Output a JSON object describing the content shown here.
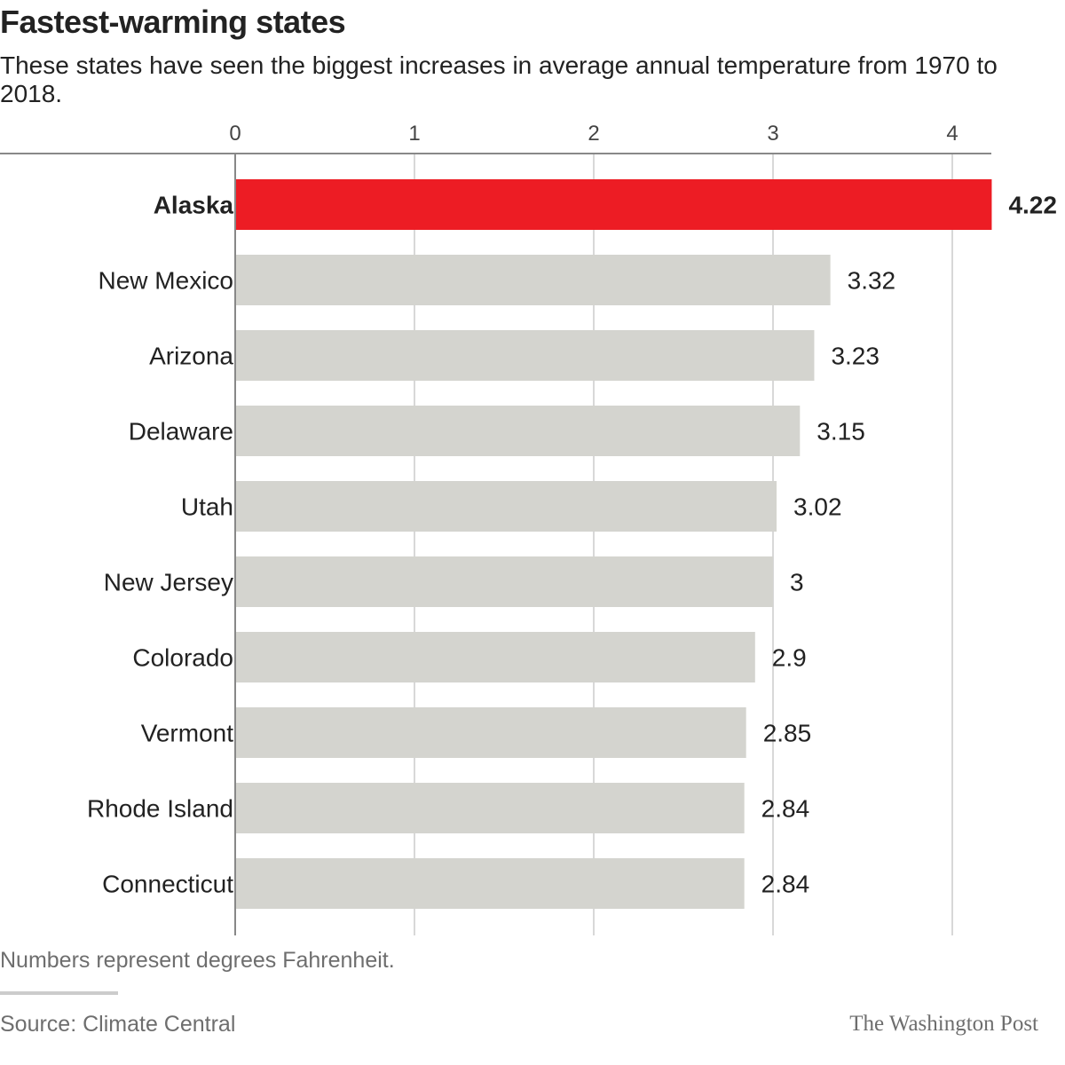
{
  "chart_data": {
    "type": "bar",
    "orientation": "horizontal",
    "title": "Fastest-warming states",
    "subtitle": "These states have seen the biggest increases in average annual temperature from 1970 to 2018.",
    "categories": [
      "Alaska",
      "New Mexico",
      "Arizona",
      "Delaware",
      "Utah",
      "New Jersey",
      "Colorado",
      "Vermont",
      "Rhode Island",
      "Connecticut"
    ],
    "values": [
      4.22,
      3.32,
      3.23,
      3.15,
      3.02,
      3,
      2.9,
      2.85,
      2.84,
      2.84
    ],
    "value_labels": [
      "4.22",
      "3.32",
      "3.23",
      "3.15",
      "3.02",
      "3",
      "2.9",
      "2.85",
      "2.84",
      "2.84"
    ],
    "highlight": "Alaska",
    "xlim": [
      0,
      4.25
    ],
    "xticks": [
      0,
      1,
      2,
      3,
      4
    ],
    "xtick_labels": [
      "0",
      "1",
      "2",
      "3",
      "4"
    ],
    "axis_position": "top",
    "grid": true,
    "xlabel": "",
    "ylabel": "",
    "colors": {
      "highlight": "#ed1c24",
      "bar": "#d4d4cf",
      "grid": "#cccccc",
      "axis": "#888888",
      "text": "#222222"
    }
  },
  "footer": {
    "note": "Numbers represent degrees Fahrenheit.",
    "source": "Source: Climate Central",
    "credit": "The Washington Post"
  }
}
